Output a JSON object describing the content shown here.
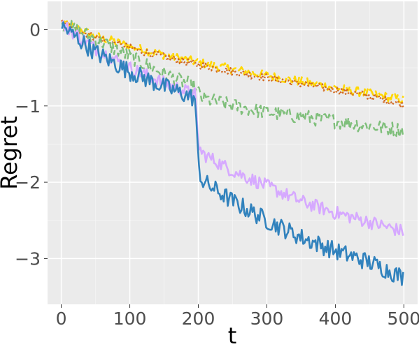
{
  "chart_data": {
    "type": "line",
    "title": "",
    "xlabel": "t",
    "ylabel": "Regret",
    "xlim": [
      -20,
      520
    ],
    "ylim": [
      -3.6,
      0.37
    ],
    "x_ticks": [
      0,
      100,
      200,
      300,
      400,
      500
    ],
    "y_ticks": [
      0,
      -1,
      -2,
      -3
    ],
    "x_tick_labels": [
      "0",
      "100",
      "200",
      "300",
      "400",
      "500"
    ],
    "y_tick_labels": [
      "0",
      "−1",
      "−2",
      "−3"
    ],
    "grid": true,
    "background": "#ebebeb",
    "legend": "none",
    "x": [
      0,
      50,
      100,
      150,
      195,
      200,
      205,
      250,
      300,
      350,
      400,
      450,
      500
    ],
    "series": [
      {
        "color": "#ffd700",
        "style": "long-dash",
        "noise": 0.06,
        "values": [
          0.1,
          -0.08,
          -0.22,
          -0.33,
          -0.42,
          -0.43,
          -0.44,
          -0.52,
          -0.6,
          -0.68,
          -0.76,
          -0.84,
          -0.92
        ]
      },
      {
        "color": "#d2691e",
        "style": "dotted",
        "noise": 0.05,
        "values": [
          0.1,
          -0.1,
          -0.24,
          -0.36,
          -0.45,
          -0.46,
          -0.47,
          -0.55,
          -0.63,
          -0.71,
          -0.79,
          -0.87,
          -0.98
        ]
      },
      {
        "color": "#7fbf7b",
        "style": "dashed",
        "noise": 0.1,
        "values": [
          0.08,
          -0.12,
          -0.35,
          -0.58,
          -0.75,
          -0.82,
          -0.9,
          -1.0,
          -1.08,
          -1.14,
          -1.2,
          -1.26,
          -1.32
        ]
      },
      {
        "color": "#d6a9ff",
        "style": "solid",
        "noise": 0.09,
        "values": [
          0.08,
          -0.25,
          -0.5,
          -0.7,
          -0.85,
          -1.5,
          -1.62,
          -1.85,
          -2.05,
          -2.25,
          -2.4,
          -2.52,
          -2.65
        ]
      },
      {
        "color": "#3182bd",
        "style": "solid",
        "noise": 0.12,
        "values": [
          0.05,
          -0.3,
          -0.55,
          -0.75,
          -0.9,
          -1.75,
          -1.98,
          -2.25,
          -2.5,
          -2.72,
          -2.9,
          -3.05,
          -3.25
        ]
      }
    ]
  }
}
